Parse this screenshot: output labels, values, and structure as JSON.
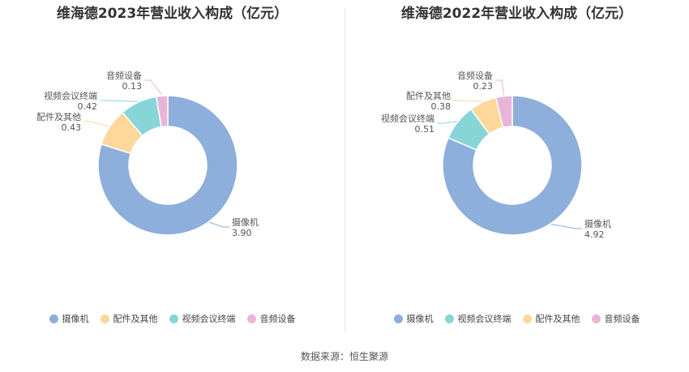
{
  "colors": {
    "摄像机": "#8eaedb",
    "配件及其他": "#fdd89a",
    "视频会议终端": "#88d5d8",
    "音频设备": "#e8b5d8"
  },
  "chart_data": [
    {
      "type": "pie",
      "variant": "donut",
      "title": "维海德2023年营业收入构成（亿元）",
      "slices": [
        {
          "name": "摄像机",
          "value": 3.9,
          "label": "3.90"
        },
        {
          "name": "配件及其他",
          "value": 0.43,
          "label": "0.43"
        },
        {
          "name": "视频会议终端",
          "value": 0.42,
          "label": "0.42"
        },
        {
          "name": "音频设备",
          "value": 0.13,
          "label": "0.13"
        }
      ],
      "legend": [
        "摄像机",
        "配件及其他",
        "视频会议终端",
        "音频设备"
      ],
      "legend_position": "bottom"
    },
    {
      "type": "pie",
      "variant": "donut",
      "title": "维海德2022年营业收入构成（亿元）",
      "slices": [
        {
          "name": "摄像机",
          "value": 4.92,
          "label": "4.92"
        },
        {
          "name": "视频会议终端",
          "value": 0.51,
          "label": "0.51"
        },
        {
          "name": "配件及其他",
          "value": 0.38,
          "label": "0.38"
        },
        {
          "name": "音频设备",
          "value": 0.23,
          "label": "0.23"
        }
      ],
      "legend": [
        "摄像机",
        "视频会议终端",
        "配件及其他",
        "音频设备"
      ],
      "legend_position": "bottom"
    }
  ],
  "source_text": "数据来源：恒生聚源"
}
